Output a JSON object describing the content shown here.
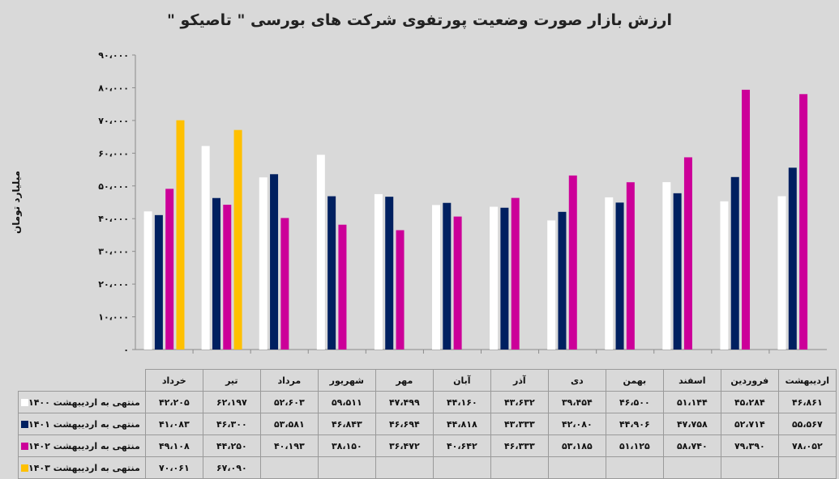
{
  "chart_data": {
    "type": "bar",
    "title": "ارزش بازار صورت وضعیت پورتفوی شرکت های بورسی \" تاصیکو \"",
    "ylabel": "میلیارد تومان",
    "ylim": [
      0,
      90000
    ],
    "yticks": [
      "۰",
      "۱۰،۰۰۰",
      "۲۰،۰۰۰",
      "۳۰،۰۰۰",
      "۴۰،۰۰۰",
      "۵۰،۰۰۰",
      "۶۰،۰۰۰",
      "۷۰،۰۰۰",
      "۸۰،۰۰۰",
      "۹۰،۰۰۰"
    ],
    "ytick_values": [
      0,
      10000,
      20000,
      30000,
      40000,
      50000,
      60000,
      70000,
      80000,
      90000
    ],
    "categories": [
      "خرداد",
      "تیر",
      "مرداد",
      "شهریور",
      "مهر",
      "آبان",
      "آذر",
      "دی",
      "بهمن",
      "اسفند",
      "فروردین",
      "اردیبهشت"
    ],
    "grid": false,
    "legend_position": "bottom-table",
    "series": [
      {
        "name": "منتهی به اردیبهشت ۱۴۰۰",
        "color": "#ffffff",
        "values": [
          42205,
          62197,
          52603,
          59511,
          47499,
          44160,
          43632,
          39454,
          46500,
          51144,
          45284,
          46861
        ],
        "labels": [
          "۴۲،۲۰۵",
          "۶۲،۱۹۷",
          "۵۲،۶۰۳",
          "۵۹،۵۱۱",
          "۴۷،۴۹۹",
          "۴۴،۱۶۰",
          "۴۳،۶۳۲",
          "۳۹،۴۵۴",
          "۴۶،۵۰۰",
          "۵۱،۱۴۴",
          "۴۵،۲۸۴",
          "۴۶،۸۶۱"
        ]
      },
      {
        "name": "منتهی به اردیبهشت ۱۴۰۱",
        "color": "#002060",
        "values": [
          41083,
          46300,
          53581,
          46843,
          46694,
          44818,
          43333,
          42080,
          44906,
          47758,
          52714,
          55567
        ],
        "labels": [
          "۴۱،۰۸۳",
          "۴۶،۳۰۰",
          "۵۳،۵۸۱",
          "۴۶،۸۴۳",
          "۴۶،۶۹۴",
          "۴۴،۸۱۸",
          "۴۳،۳۳۳",
          "۴۲،۰۸۰",
          "۴۴،۹۰۶",
          "۴۷،۷۵۸",
          "۵۲،۷۱۴",
          "۵۵،۵۶۷"
        ]
      },
      {
        "name": "منتهی به اردیبهشت ۱۴۰۲",
        "color": "#cc0099",
        "values": [
          49108,
          44250,
          40193,
          38150,
          36472,
          40642,
          46333,
          53185,
          51125,
          58740,
          79390,
          78052
        ],
        "labels": [
          "۴۹،۱۰۸",
          "۴۴،۲۵۰",
          "۴۰،۱۹۳",
          "۳۸،۱۵۰",
          "۳۶،۴۷۲",
          "۴۰،۶۴۲",
          "۴۶،۳۳۳",
          "۵۳،۱۸۵",
          "۵۱،۱۲۵",
          "۵۸،۷۴۰",
          "۷۹،۳۹۰",
          "۷۸،۰۵۲"
        ]
      },
      {
        "name": "منتهی به اردیبهشت ۱۴۰۳",
        "color": "#ffc000",
        "values": [
          70061,
          67090,
          null,
          null,
          null,
          null,
          null,
          null,
          null,
          null,
          null,
          null
        ],
        "labels": [
          "۷۰،۰۶۱",
          "۶۷،۰۹۰",
          "",
          "",
          "",
          "",
          "",
          "",
          "",
          "",
          "",
          ""
        ]
      }
    ]
  }
}
